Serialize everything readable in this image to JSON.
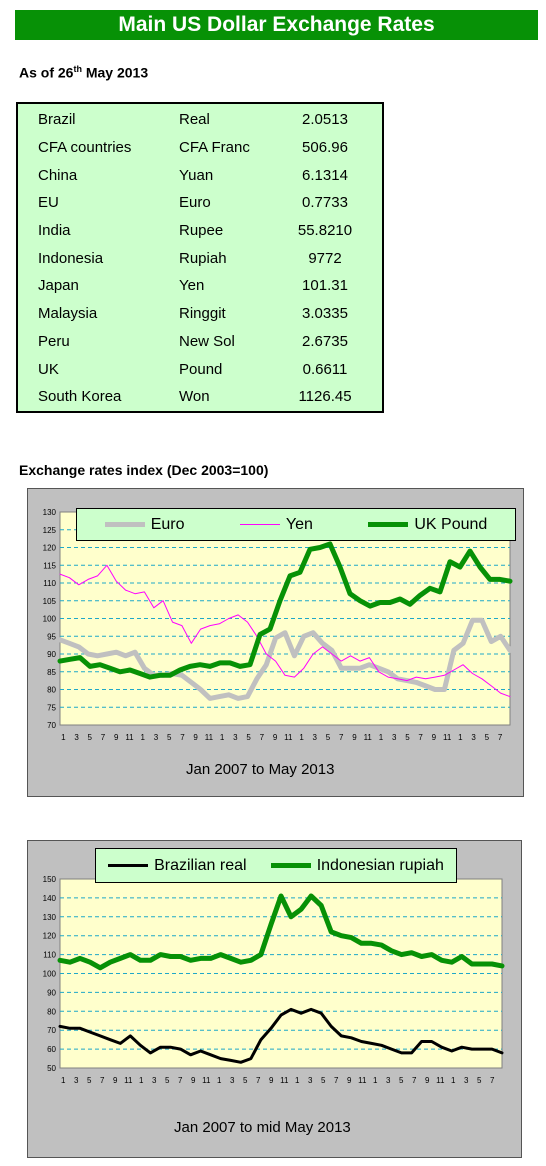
{
  "header": {
    "title": "Main US Dollar Exchange Rates",
    "as_of_prefix": "As of 26",
    "as_of_sup": "th",
    "as_of_suffix": " May 2013"
  },
  "rates": [
    {
      "country": "Brazil",
      "currency": "Real",
      "value": "2.0513"
    },
    {
      "country": "CFA countries",
      "currency": "CFA Franc",
      "value": "506.96"
    },
    {
      "country": "China",
      "currency": "Yuan",
      "value": "6.1314"
    },
    {
      "country": "EU",
      "currency": "Euro",
      "value": "0.7733"
    },
    {
      "country": "India",
      "currency": "Rupee",
      "value": "55.8210"
    },
    {
      "country": "Indonesia",
      "currency": "Rupiah",
      "value": "9772"
    },
    {
      "country": "Japan",
      "currency": "Yen",
      "value": "101.31"
    },
    {
      "country": "Malaysia",
      "currency": "Ringgit",
      "value": "3.0335"
    },
    {
      "country": "Peru",
      "currency": "New Sol",
      "value": "2.6735"
    },
    {
      "country": "UK",
      "currency": "Pound",
      "value": "0.6611"
    },
    {
      "country": "South Korea",
      "currency": "Won",
      "value": "1126.45"
    }
  ],
  "index_section_title": "Exchange rates index (Dec 2003=100)",
  "chart_data": [
    {
      "type": "line",
      "xlabel": "Jan 2007 to May 2013",
      "ylim": [
        70,
        130
      ],
      "yticks": [
        70,
        75,
        80,
        85,
        90,
        95,
        100,
        105,
        110,
        115,
        120,
        125,
        130
      ],
      "x_tick_labels": [
        "1",
        "3",
        "5",
        "7",
        "9",
        "11",
        "1",
        "3",
        "5",
        "7",
        "9",
        "11",
        "1",
        "3",
        "5",
        "7",
        "9",
        "11",
        "1",
        "3",
        "5",
        "7",
        "9",
        "11",
        "1",
        "3",
        "5",
        "7",
        "9",
        "11",
        "1",
        "3",
        "5",
        "7"
      ],
      "legend_position": "top",
      "series": [
        {
          "name": "Euro",
          "color": "#c0c0c0",
          "width": 5,
          "values": [
            94,
            93,
            92,
            90,
            89.5,
            90,
            90.5,
            89.5,
            90.5,
            86,
            84,
            84,
            84.5,
            84,
            82,
            80,
            77.5,
            78,
            78.5,
            77.5,
            78,
            83,
            87,
            94.5,
            96,
            89.5,
            95,
            96,
            93,
            91,
            86,
            86,
            86,
            87,
            86,
            85,
            83,
            82.5,
            82,
            81,
            80,
            80,
            91,
            93,
            99.5,
            99.5,
            93.5,
            95,
            91
          ]
        },
        {
          "name": "Yen",
          "color": "#ff00ff",
          "width": 1,
          "values": [
            112.5,
            111.5,
            109.5,
            111,
            112,
            115,
            110.5,
            108,
            107,
            107.5,
            103,
            105,
            99,
            98,
            93,
            97,
            98,
            98.5,
            100,
            101,
            99,
            95,
            90,
            88,
            84,
            83.5,
            86,
            90,
            92,
            90,
            88,
            89.5,
            88,
            89,
            85,
            83.5,
            83,
            82.5,
            83.5,
            83,
            83.5,
            84,
            85.5,
            87,
            84.5,
            83,
            81,
            79,
            78
          ]
        },
        {
          "name": "UK Pound",
          "color": "#079106",
          "width": 5,
          "values": [
            88,
            88.5,
            89,
            86.5,
            87,
            86,
            85,
            85.5,
            84.5,
            83.5,
            84,
            84,
            85.5,
            86.5,
            87,
            86.5,
            87.5,
            87.5,
            86.5,
            87,
            95.5,
            97,
            105,
            112,
            113,
            119.5,
            120,
            121,
            114.5,
            107,
            105,
            103.5,
            104.5,
            104.5,
            105.5,
            104,
            106.5,
            108.5,
            107.5,
            116,
            114.5,
            119,
            114.5,
            111,
            111,
            110.5
          ]
        }
      ]
    },
    {
      "type": "line",
      "xlabel": "Jan 2007 to mid May 2013",
      "ylim": [
        50,
        150
      ],
      "yticks": [
        50,
        60,
        70,
        80,
        90,
        100,
        110,
        120,
        130,
        140,
        150
      ],
      "x_tick_labels": [
        "1",
        "3",
        "5",
        "7",
        "9",
        "11",
        "1",
        "3",
        "5",
        "7",
        "9",
        "11",
        "1",
        "3",
        "5",
        "7",
        "9",
        "11",
        "1",
        "3",
        "5",
        "7",
        "9",
        "11",
        "1",
        "3",
        "5",
        "7",
        "9",
        "11",
        "1",
        "3",
        "5",
        "7"
      ],
      "legend_position": "top",
      "series": [
        {
          "name": "Brazilian real",
          "color": "#000000",
          "width": 3,
          "values": [
            72,
            71,
            71,
            69,
            67,
            65,
            63,
            67,
            62,
            58,
            61,
            61,
            60,
            57,
            59,
            57,
            55,
            54,
            53,
            55,
            65,
            71,
            78,
            81,
            79,
            81,
            79,
            72,
            67,
            66,
            64,
            63,
            62,
            60,
            58,
            58,
            64,
            64,
            61,
            59,
            61,
            60,
            60,
            60,
            58
          ]
        },
        {
          "name": "Indonesian rupiah",
          "color": "#079106",
          "width": 5,
          "values": [
            107,
            106,
            108,
            106,
            103,
            106,
            108,
            110,
            107,
            107,
            110,
            109,
            109,
            107,
            108,
            108,
            110,
            108,
            106,
            107,
            110,
            126,
            141,
            130,
            134,
            141,
            136,
            122,
            120,
            119,
            116,
            116,
            115,
            112,
            110,
            111,
            109,
            110,
            107,
            106,
            109,
            105,
            105,
            105,
            104
          ]
        }
      ]
    }
  ]
}
